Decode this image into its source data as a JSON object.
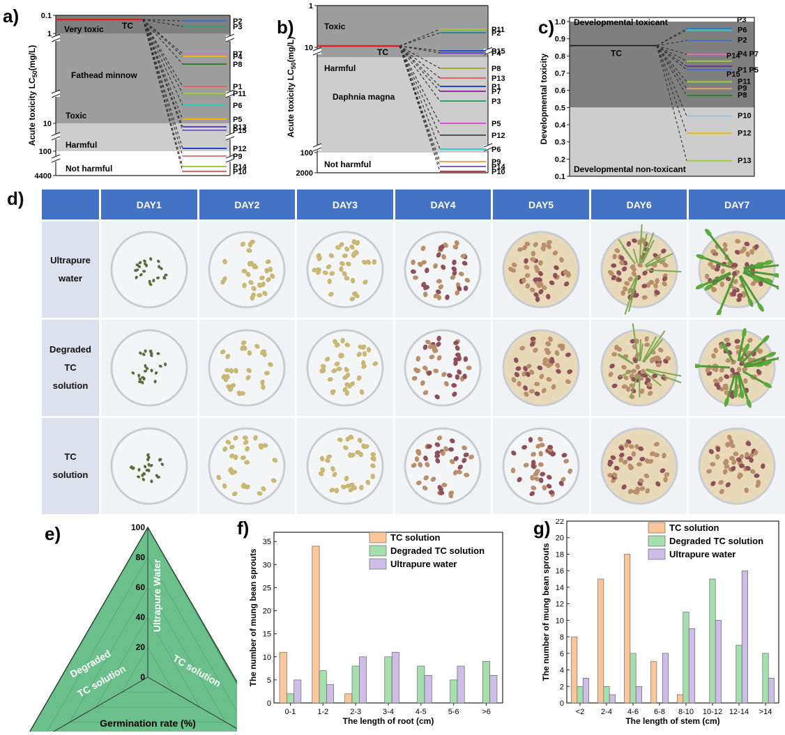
{
  "panel_letters": {
    "a": "a)",
    "b": "b)",
    "c": "c)",
    "d": "d)",
    "e": "e)",
    "f": "f)",
    "g": "g)"
  },
  "chart_data": [
    {
      "id": "a",
      "type": "toxicity_scale",
      "ylabel_main": "Acute toxicity LC",
      "ylabel_sub": "50",
      "ylabel_unit": "(mg/L)",
      "ticks": [
        "0.1",
        "1",
        "10",
        "100",
        "4400"
      ],
      "zones": [
        {
          "label": "Very toxic",
          "color": "#7f7f7f"
        },
        {
          "label": "Toxic",
          "color": "#9e9e9e"
        },
        {
          "label": "Harmful",
          "color": "#cdcdcd"
        },
        {
          "label": "Not harmful",
          "color": "#ffffff"
        }
      ],
      "species": "Fathead minnow",
      "tc_label": "TC",
      "tc_value": 0.1,
      "products": [
        {
          "name": "P2",
          "value": 0.5,
          "color": "#4472c4"
        },
        {
          "name": "P3",
          "value": 0.9,
          "color": "#3c9f6f"
        },
        {
          "name": "P7",
          "value": 2.0,
          "color": "#c878c8"
        },
        {
          "name": "P4",
          "value": 2.3,
          "color": "#f5b800"
        },
        {
          "name": "P8",
          "value": 3.0,
          "color": "#2e7d32"
        },
        {
          "name": "P1",
          "value": 5.0,
          "color": "#e0605a"
        },
        {
          "name": "P11",
          "value": 6.0,
          "color": "#9acd32"
        },
        {
          "name": "P6",
          "value": 7.0,
          "color": "#2ccfc7"
        },
        {
          "name": "P5",
          "value": 9.0,
          "color": "#f5b800"
        },
        {
          "name": "P13",
          "value": 11,
          "color": "#5b3fd0"
        },
        {
          "name": "P15",
          "value": 13,
          "color": "#7b61b8"
        },
        {
          "name": "P12",
          "value": 60,
          "color": "#2347d4"
        },
        {
          "name": "P9",
          "value": 130,
          "color": "#e07a7a"
        },
        {
          "name": "P14",
          "value": 600,
          "color": "#9acd32"
        },
        {
          "name": "P10",
          "value": 2000,
          "color": "#e06666"
        }
      ]
    },
    {
      "id": "b",
      "type": "toxicity_scale",
      "ylabel_main": "Acute toxicity LC",
      "ylabel_sub": "50",
      "ylabel_unit": "(mg/L)",
      "ticks": [
        "1",
        "10",
        "100",
        "2000"
      ],
      "zones": [
        {
          "label": "Toxic",
          "color": "#9e9e9e"
        },
        {
          "label": "Harmful",
          "color": "#cdcdcd"
        },
        {
          "label": "Not harmful",
          "color": "#ffffff"
        }
      ],
      "species": "Daphnia magna",
      "tc_label": "TC",
      "tc_value": 8,
      "products": [
        {
          "name": "P11",
          "value": 2.5,
          "color": "#9acd32"
        },
        {
          "name": "P2",
          "value": 3.5,
          "color": "#2e8b8b"
        },
        {
          "name": "P15",
          "value": 9.0,
          "color": "#2347d4"
        },
        {
          "name": "P4",
          "value": 10.5,
          "color": "#6a3fc9"
        },
        {
          "name": "P8",
          "value": 15,
          "color": "#a5a530"
        },
        {
          "name": "P13",
          "value": 20,
          "color": "#e06666"
        },
        {
          "name": "P1",
          "value": 25,
          "color": "#2347d4"
        },
        {
          "name": "P7",
          "value": 28,
          "color": "#9030a0"
        },
        {
          "name": "P3",
          "value": 33,
          "color": "#3c9f6f"
        },
        {
          "name": "P5",
          "value": 50,
          "color": "#e04dd0"
        },
        {
          "name": "P12",
          "value": 70,
          "color": "#555555"
        },
        {
          "name": "P6",
          "value": 90,
          "color": "#2ccfc7"
        },
        {
          "name": "P9",
          "value": 150,
          "color": "#f0a060"
        },
        {
          "name": "P14",
          "value": 600,
          "color": "#7b61b8"
        },
        {
          "name": "P10",
          "value": 1500,
          "color": "#c04040"
        }
      ]
    },
    {
      "id": "c",
      "type": "toxicity_scale",
      "ylabel": "Developmental toxicity",
      "ylim": [
        0.1,
        1.0
      ],
      "ticks": [
        "0.1",
        "0.2",
        "0.3",
        "0.4",
        "0.5",
        "0.6",
        "0.7",
        "0.8",
        "0.9",
        "1.0"
      ],
      "threshold": 0.5,
      "zones": [
        {
          "label": "Developmental toxicant",
          "color": "#7f7f7f"
        },
        {
          "label": "Developmental non-toxicant",
          "color": "#cdcdcd"
        }
      ],
      "tc_label": "TC",
      "tc_value": 0.86,
      "products": [
        {
          "name": "P3",
          "value": 0.96,
          "color": "#4472c4"
        },
        {
          "name": "P6",
          "value": 0.95,
          "color": "#2ccfc7"
        },
        {
          "name": "P2",
          "value": 0.89,
          "color": "#4472c4"
        },
        {
          "name": "P4 P7",
          "value": 0.81,
          "color": "#d77aa8"
        },
        {
          "name": "P14",
          "value": 0.77,
          "color": "#9acd32"
        },
        {
          "name": "P1 P5",
          "value": 0.74,
          "color": "#7030a0"
        },
        {
          "name": "P15",
          "value": 0.72,
          "color": "#4472c4"
        },
        {
          "name": "P11",
          "value": 0.65,
          "color": "#9acd32"
        },
        {
          "name": "P9",
          "value": 0.61,
          "color": "#f0a060"
        },
        {
          "name": "P8",
          "value": 0.57,
          "color": "#2e7d32"
        },
        {
          "name": "P10",
          "value": 0.45,
          "color": "#9ec5e8"
        },
        {
          "name": "P12",
          "value": 0.35,
          "color": "#f5b800"
        },
        {
          "name": "P13",
          "value": 0.19,
          "color": "#9acd32"
        }
      ]
    },
    {
      "id": "e",
      "type": "radar",
      "xlabel": "Germination rate (%)",
      "r_ticks": [
        "0",
        "20",
        "40",
        "60",
        "80",
        "100"
      ],
      "rmax": 100,
      "axes": [
        {
          "label": "Ultrapure Water",
          "value": 100
        },
        {
          "label": "TC solution",
          "value": 98
        },
        {
          "label": "Degraded TC solution",
          "label_lines": [
            "Degraded",
            "TC solution"
          ],
          "value": 100
        }
      ],
      "fill_color": "#6abf8a"
    },
    {
      "id": "f",
      "type": "bar",
      "ylabel": "The number of mung bean sprouts",
      "xlabel": "The length of root (cm)",
      "categories": [
        "0-1",
        "1-2",
        "2-3",
        "3-4",
        "4-5",
        "5-6",
        ">6"
      ],
      "ylim": [
        0,
        37
      ],
      "yticks": [
        0,
        5,
        10,
        15,
        20,
        25,
        30,
        35
      ],
      "series": [
        {
          "name": "TC solution",
          "color": "#fbc79a",
          "values": [
            11,
            34,
            2,
            0,
            0,
            0,
            0
          ]
        },
        {
          "name": "Degraded TC solution",
          "color": "#a6dfae",
          "values": [
            2,
            7,
            8,
            10,
            8,
            5,
            9
          ]
        },
        {
          "name": "Ultrapure water",
          "color": "#cdbde8",
          "values": [
            5,
            4,
            10,
            11,
            6,
            8,
            6
          ]
        }
      ]
    },
    {
      "id": "g",
      "type": "bar",
      "ylabel": "The number of mung bean sprouts",
      "xlabel": "The length of stem (cm)",
      "categories": [
        "<2",
        "2-4",
        "4-6",
        "6-8",
        "8-10",
        "10-12",
        "12-14",
        ">14"
      ],
      "ylim": [
        0,
        22
      ],
      "yticks": [
        0,
        2,
        4,
        6,
        8,
        10,
        12,
        14,
        16,
        18,
        20,
        22
      ],
      "series": [
        {
          "name": "TC solution",
          "color": "#fbc79a",
          "values": [
            8,
            15,
            18,
            5,
            1,
            0,
            0,
            0
          ]
        },
        {
          "name": "Degraded TC solution",
          "color": "#a6dfae",
          "values": [
            2,
            2,
            6,
            0,
            11,
            15,
            7,
            6
          ]
        },
        {
          "name": "Ultrapure water",
          "color": "#cdbde8",
          "values": [
            3,
            1,
            2,
            6,
            9,
            10,
            16,
            3
          ]
        }
      ]
    }
  ],
  "sprout_table": {
    "days": [
      "DAY1",
      "DAY2",
      "DAY3",
      "DAY4",
      "DAY5",
      "DAY6",
      "DAY7"
    ],
    "rows": [
      {
        "label": "Ultrapure\nwater",
        "growth": [
          0,
          1,
          2,
          3,
          4,
          6,
          7
        ]
      },
      {
        "label": "Degraded\nTC\nsolution",
        "growth": [
          0,
          1,
          2,
          3,
          4,
          6,
          7
        ]
      },
      {
        "label": "TC\nsolution",
        "growth": [
          0,
          1,
          2,
          3,
          3,
          4,
          4
        ]
      }
    ]
  }
}
